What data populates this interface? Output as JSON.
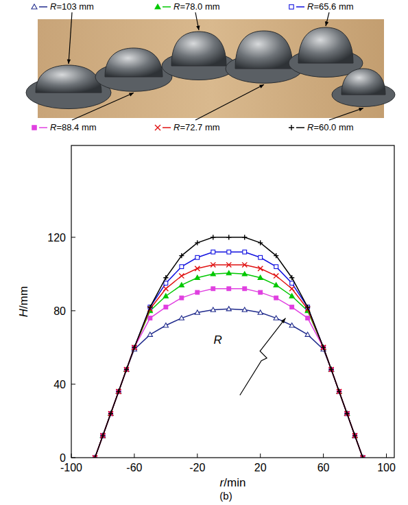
{
  "chart_data": {
    "type": "line",
    "x_label": "r/min",
    "y_label": "H/mm",
    "caption": "(b)",
    "annotation": "R",
    "x": [
      -85,
      -80,
      -75,
      -70,
      -65,
      -60,
      -50,
      -40,
      -30,
      -20,
      -10,
      0,
      10,
      20,
      30,
      40,
      50,
      60,
      65,
      70,
      75,
      80,
      85
    ],
    "xlim": [
      -100,
      105
    ],
    "ylim": [
      0,
      170
    ],
    "xticks": [
      -100,
      -60,
      -20,
      20,
      60,
      100
    ],
    "yticks": [
      0,
      40,
      80,
      120
    ],
    "legend": "top",
    "series": [
      {
        "name": "R=103 mm",
        "color": "#1f2a8c",
        "marker": "triangle-open",
        "values": [
          0,
          12,
          24,
          36,
          48,
          59,
          67,
          72,
          76,
          79,
          80.5,
          81,
          80.5,
          79,
          76,
          72,
          67,
          59,
          48,
          36,
          24,
          12,
          0
        ]
      },
      {
        "name": "R=78.0 mm",
        "color": "#00c800",
        "marker": "triangle",
        "values": [
          0,
          12,
          24,
          36,
          48,
          60,
          80,
          88,
          94,
          98,
          100,
          100.5,
          100,
          98,
          94,
          88,
          80,
          60,
          48,
          36,
          24,
          12,
          0
        ]
      },
      {
        "name": "R=65.6 mm",
        "color": "#1010e0",
        "marker": "square-open",
        "values": [
          0,
          12,
          24,
          36,
          48,
          60,
          82,
          95,
          104,
          109,
          112,
          112,
          112,
          109,
          104,
          95,
          82,
          60,
          48,
          36,
          24,
          12,
          0
        ]
      },
      {
        "name": "R=88.4 mm",
        "color": "#e040e0",
        "marker": "square",
        "values": [
          0,
          12,
          24,
          36,
          48,
          60,
          76,
          82,
          87,
          90,
          92,
          92,
          92,
          90,
          87,
          82,
          76,
          60,
          48,
          36,
          24,
          12,
          0
        ]
      },
      {
        "name": "R=72.7 mm",
        "color": "#e01010",
        "marker": "x",
        "values": [
          0,
          12,
          24,
          36,
          48,
          60,
          81,
          92,
          99,
          103,
          105,
          105,
          105,
          103,
          99,
          92,
          81,
          60,
          48,
          36,
          24,
          12,
          0
        ]
      },
      {
        "name": "R=60.0 mm",
        "color": "#000000",
        "marker": "plus",
        "values": [
          0,
          12,
          24,
          36,
          48,
          60,
          82,
          98,
          110,
          117,
          120,
          120,
          120,
          117,
          110,
          98,
          82,
          60,
          48,
          36,
          24,
          12,
          0
        ]
      }
    ]
  }
}
